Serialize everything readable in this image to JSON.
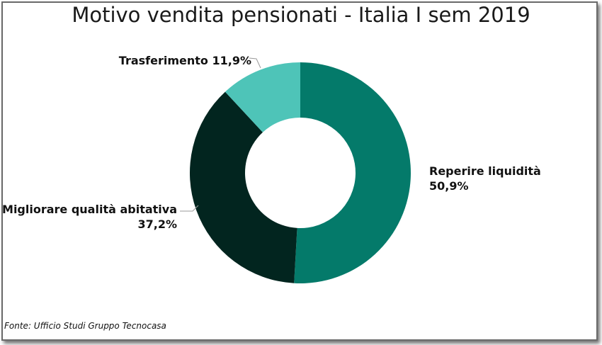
{
  "chart_data": {
    "type": "pie",
    "donut": true,
    "title": "Motivo vendita pensionati - Italia I sem 2019",
    "slices": [
      {
        "label": "Reperire liquidità",
        "value": 50.9,
        "value_text": "50,9%",
        "color": "#047a6a"
      },
      {
        "label": "Migliorare qualità abitativa",
        "value": 37.2,
        "value_text": "37,2%",
        "color": "#02251f"
      },
      {
        "label": "Trasferimento",
        "value": 11.9,
        "value_text": "11,9%",
        "color": "#4ec4b8"
      }
    ],
    "source": "Fonte: Ufficio Studi Gruppo Tecnocasa"
  }
}
